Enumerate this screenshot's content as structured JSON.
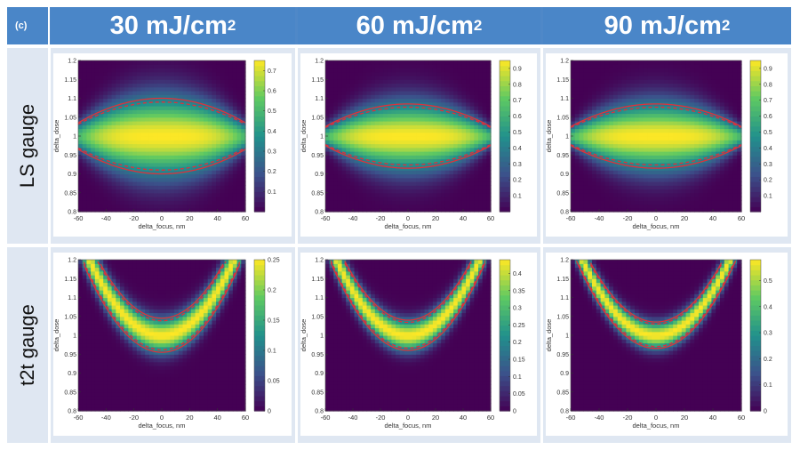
{
  "panel_label": "(c)",
  "columns": [
    {
      "text": "30 mJ/cm",
      "sup": "2"
    },
    {
      "text": "60 mJ/cm",
      "sup": "2"
    },
    {
      "text": "90 mJ/cm",
      "sup": "2"
    }
  ],
  "rows": [
    "LS gauge",
    "t2t gauge"
  ],
  "colors": {
    "header": "#4a86c8",
    "cell": "#dfe7f2",
    "contour": "#e0303a",
    "viridis_low": "#3b2d86",
    "viridis_high": "#f8e51a"
  },
  "chart_data": [
    {
      "type": "heatmap",
      "row": "LS gauge",
      "column": "30 mJ/cm2",
      "xlabel": "delta_focus, nm",
      "ylabel": "delta_dose",
      "xlim": [
        -60,
        60
      ],
      "ylim": [
        0.8,
        1.2
      ],
      "xticks": [
        "-60",
        "-40",
        "-20",
        "0",
        "20",
        "40",
        "60"
      ],
      "yticks": [
        "0.8",
        "0.85",
        "0.9",
        "0.95",
        "1",
        "1.05",
        "1.1",
        "1.15",
        "1.2"
      ],
      "colorbar_max": 0.75,
      "colorbar_ticks": [
        "0.1",
        "0.2",
        "0.3",
        "0.4",
        "0.5",
        "0.6",
        "0.7"
      ],
      "shape": "ellipse",
      "dose_half_width_center": 0.1,
      "dose_half_width_edge": 0.035
    },
    {
      "type": "heatmap",
      "row": "LS gauge",
      "column": "60 mJ/cm2",
      "xlabel": "delta_focus, nm",
      "ylabel": "delta_dose",
      "xlim": [
        -60,
        60
      ],
      "ylim": [
        0.8,
        1.2
      ],
      "xticks": [
        "-60",
        "-40",
        "-20",
        "0",
        "20",
        "40",
        "60"
      ],
      "yticks": [
        "0.8",
        "0.85",
        "0.9",
        "0.95",
        "1",
        "1.05",
        "1.1",
        "1.15",
        "1.2"
      ],
      "colorbar_max": 0.95,
      "colorbar_ticks": [
        "0.1",
        "0.2",
        "0.3",
        "0.4",
        "0.5",
        "0.6",
        "0.7",
        "0.8",
        "0.9"
      ],
      "shape": "ellipse",
      "dose_half_width_center": 0.085,
      "dose_half_width_edge": 0.025
    },
    {
      "type": "heatmap",
      "row": "LS gauge",
      "column": "90 mJ/cm2",
      "xlabel": "delta_focus, nm",
      "ylabel": "delta_dose",
      "xlim": [
        -60,
        60
      ],
      "ylim": [
        0.8,
        1.2
      ],
      "xticks": [
        "-60",
        "-40",
        "-20",
        "0",
        "20",
        "40",
        "60"
      ],
      "yticks": [
        "0.8",
        "0.85",
        "0.9",
        "0.95",
        "1",
        "1.05",
        "1.1",
        "1.15",
        "1.2"
      ],
      "colorbar_max": 0.95,
      "colorbar_ticks": [
        "0.1",
        "0.2",
        "0.3",
        "0.4",
        "0.5",
        "0.6",
        "0.7",
        "0.8",
        "0.9"
      ],
      "shape": "ellipse",
      "dose_half_width_center": 0.085,
      "dose_half_width_edge": 0.025
    },
    {
      "type": "heatmap",
      "row": "t2t gauge",
      "column": "30 mJ/cm2",
      "xlabel": "delta_focus, nm",
      "ylabel": "delta_dose",
      "xlim": [
        -60,
        60
      ],
      "ylim": [
        0.8,
        1.2
      ],
      "xticks": [
        "-60",
        "-40",
        "-20",
        "0",
        "20",
        "40",
        "60"
      ],
      "yticks": [
        "0.8",
        "0.85",
        "0.9",
        "0.95",
        "1",
        "1.05",
        "1.1",
        "1.15",
        "1.2"
      ],
      "colorbar_max": 0.25,
      "colorbar_ticks": [
        "0",
        "0.05",
        "0.1",
        "0.15",
        "0.2",
        "0.25"
      ],
      "shape": "parabola",
      "vertex_dose": 1.0,
      "band_half_width": 0.045
    },
    {
      "type": "heatmap",
      "row": "t2t gauge",
      "column": "60 mJ/cm2",
      "xlabel": "delta_focus, nm",
      "ylabel": "delta_dose",
      "xlim": [
        -60,
        60
      ],
      "ylim": [
        0.8,
        1.2
      ],
      "xticks": [
        "-60",
        "-40",
        "-20",
        "0",
        "20",
        "40",
        "60"
      ],
      "yticks": [
        "0.8",
        "0.85",
        "0.9",
        "0.95",
        "1",
        "1.05",
        "1.1",
        "1.15",
        "1.2"
      ],
      "colorbar_max": 0.44,
      "colorbar_ticks": [
        "0",
        "0.05",
        "0.1",
        "0.15",
        "0.2",
        "0.25",
        "0.3",
        "0.35",
        "0.4"
      ],
      "shape": "parabola",
      "vertex_dose": 1.0,
      "band_half_width": 0.04
    },
    {
      "type": "heatmap",
      "row": "t2t gauge",
      "column": "90 mJ/cm2",
      "xlabel": "delta_focus, nm",
      "ylabel": "delta_dose",
      "xlim": [
        -60,
        60
      ],
      "ylim": [
        0.8,
        1.2
      ],
      "xticks": [
        "-60",
        "-40",
        "-20",
        "0",
        "20",
        "40",
        "60"
      ],
      "yticks": [
        "0.8",
        "0.85",
        "0.9",
        "0.95",
        "1",
        "1.05",
        "1.1",
        "1.15",
        "1.2"
      ],
      "colorbar_max": 0.58,
      "colorbar_ticks": [
        "0",
        "0.1",
        "0.2",
        "0.3",
        "0.4",
        "0.5"
      ],
      "shape": "parabola",
      "vertex_dose": 1.0,
      "band_half_width": 0.035
    }
  ]
}
